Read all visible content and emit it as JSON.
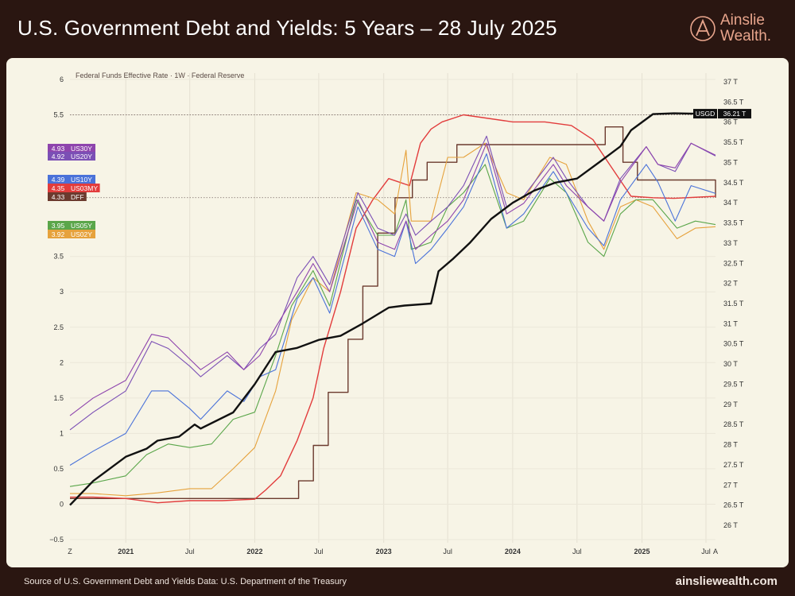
{
  "header": {
    "title": "U.S. Government Debt and Yields: 5 Years – 28 July 2025",
    "logo_line1": "Ainslie",
    "logo_line2": "Wealth."
  },
  "footer": {
    "source": "Source of U.S. Government Debt and Yields Data: U.S. Department of the Treasury",
    "site": "ainsliewealth.com"
  },
  "colors": {
    "debt": "#111111",
    "US30Y": "#8e44ad",
    "US20Y": "#7b4fb5",
    "US10Y": "#4a72d9",
    "US03MY": "#e23c3c",
    "DFF": "#6b3a2e",
    "US05Y": "#5aa64a",
    "US02Y": "#e6a23c"
  },
  "chart_data": {
    "type": "line",
    "subtitle": "Federal Funds Effective Rate · 1W · Federal Reserve",
    "x_range": [
      "2020-07-27",
      "2025-07-28"
    ],
    "x_ticks": [
      {
        "date": "2020-07-27",
        "label": "Z"
      },
      {
        "date": "2021-01-01",
        "label": "2021"
      },
      {
        "date": "2021-07-01",
        "label": "Jul"
      },
      {
        "date": "2022-01-01",
        "label": "2022"
      },
      {
        "date": "2022-07-01",
        "label": "Jul"
      },
      {
        "date": "2023-01-01",
        "label": "2023"
      },
      {
        "date": "2023-07-01",
        "label": "Jul"
      },
      {
        "date": "2024-01-01",
        "label": "2024"
      },
      {
        "date": "2024-07-01",
        "label": "Jul"
      },
      {
        "date": "2025-01-01",
        "label": "2025"
      },
      {
        "date": "2025-07-01",
        "label": "Jul"
      },
      {
        "date": "2025-07-28",
        "label": "A"
      }
    ],
    "left_axis": {
      "ylim": [
        -0.5,
        6
      ],
      "ticks": [
        "6",
        "5.5",
        "3.5",
        "3",
        "2.5",
        "2",
        "1.5",
        "1",
        "0.5",
        "0",
        "−0.5"
      ]
    },
    "right_axis": {
      "ylim": [
        26,
        37
      ],
      "ticks": [
        "37 T",
        "36.5 T",
        "36 T",
        "35.5 T",
        "35 T",
        "34.5 T",
        "34 T",
        "33.5 T",
        "33 T",
        "32.5 T",
        "32 T",
        "31.5 T",
        "31 T",
        "30.5 T",
        "30 T",
        "29.5 T",
        "29 T",
        "28.5 T",
        "28 T",
        "27.5 T",
        "27 T",
        "26.5 T",
        "26 T"
      ]
    },
    "reference_lines": [
      {
        "axis": "left",
        "value": 5.5
      },
      {
        "axis": "left",
        "value": 4.33
      }
    ],
    "labels": [
      {
        "value": "4.93",
        "name": "US30Y",
        "color": "#8e44ad"
      },
      {
        "value": "4.92",
        "name": "US20Y",
        "color": "#7b4fb5"
      },
      {
        "value": "4.39",
        "name": "US10Y",
        "color": "#4a72d9"
      },
      {
        "value": "4.35",
        "name": "US03MY",
        "color": "#e23c3c"
      },
      {
        "value": "4.33",
        "name": "DFF",
        "color": "#6b3a2e"
      },
      {
        "value": "3.95",
        "name": "US05Y",
        "color": "#5aa64a"
      },
      {
        "value": "3.92",
        "name": "US02Y",
        "color": "#e6a23c"
      }
    ],
    "debt_label": {
      "name": "USGD",
      "value": "36.21 T"
    },
    "series": [
      {
        "name": "USGD",
        "axis": "right",
        "color": "#111111",
        "width": 2.4,
        "x": [
          "2020-07-27",
          "2020-10-01",
          "2021-01-01",
          "2021-03-01",
          "2021-04-01",
          "2021-06-01",
          "2021-07-15",
          "2021-08-01",
          "2021-11-01",
          "2022-01-01",
          "2022-03-01",
          "2022-05-01",
          "2022-07-01",
          "2022-09-01",
          "2022-11-01",
          "2023-01-15",
          "2023-03-01",
          "2023-05-15",
          "2023-06-05",
          "2023-07-15",
          "2023-09-01",
          "2023-11-01",
          "2024-01-01",
          "2024-03-01",
          "2024-05-01",
          "2024-07-01",
          "2024-09-01",
          "2024-11-01",
          "2024-12-01",
          "2025-02-01",
          "2025-04-01",
          "2025-06-01",
          "2025-07-28"
        ],
        "y": [
          26.5,
          27.1,
          27.7,
          27.9,
          28.1,
          28.2,
          28.5,
          28.4,
          28.8,
          29.5,
          30.3,
          30.4,
          30.6,
          30.7,
          31.0,
          31.4,
          31.45,
          31.5,
          32.3,
          32.6,
          33.0,
          33.6,
          34.0,
          34.3,
          34.5,
          34.6,
          35.0,
          35.4,
          35.8,
          36.2,
          36.22,
          36.21,
          36.21
        ]
      },
      {
        "name": "DFF",
        "axis": "left",
        "color": "#6b3a2e",
        "width": 1.4,
        "x": [
          "2020-07-27",
          "2022-03-17",
          "2022-05-05",
          "2022-06-16",
          "2022-07-28",
          "2022-09-22",
          "2022-11-03",
          "2022-12-15",
          "2023-02-02",
          "2023-03-23",
          "2023-05-04",
          "2023-07-27",
          "2024-09-19",
          "2024-11-08",
          "2024-12-19",
          "2025-07-28"
        ],
        "y": [
          0.08,
          0.08,
          0.33,
          0.83,
          1.58,
          2.33,
          3.08,
          3.83,
          4.33,
          4.58,
          4.83,
          5.08,
          5.33,
          4.83,
          4.58,
          4.33
        ],
        "step": true
      },
      {
        "name": "US03MY",
        "axis": "left",
        "color": "#e23c3c",
        "width": 1.4,
        "x": [
          "2020-07-27",
          "2020-10-01",
          "2021-01-01",
          "2021-04-01",
          "2021-07-01",
          "2021-10-01",
          "2022-01-01",
          "2022-02-01",
          "2022-03-15",
          "2022-05-01",
          "2022-06-15",
          "2022-07-15",
          "2022-09-01",
          "2022-10-15",
          "2022-12-01",
          "2023-01-15",
          "2023-03-15",
          "2023-04-15",
          "2023-05-15",
          "2023-06-15",
          "2023-08-15",
          "2024-01-01",
          "2024-04-01",
          "2024-06-15",
          "2024-08-15",
          "2024-10-01",
          "2024-12-01",
          "2025-02-01",
          "2025-04-01",
          "2025-07-28"
        ],
        "y": [
          0.1,
          0.1,
          0.08,
          0.02,
          0.05,
          0.05,
          0.07,
          0.2,
          0.4,
          0.9,
          1.5,
          2.2,
          3.0,
          3.9,
          4.3,
          4.6,
          4.5,
          5.1,
          5.3,
          5.4,
          5.5,
          5.4,
          5.4,
          5.35,
          5.15,
          4.8,
          4.35,
          4.33,
          4.32,
          4.35
        ]
      },
      {
        "name": "US02Y",
        "axis": "left",
        "color": "#e6a23c",
        "width": 1.1,
        "x": [
          "2020-07-27",
          "2020-10-01",
          "2021-01-01",
          "2021-04-01",
          "2021-07-01",
          "2021-09-01",
          "2021-11-01",
          "2022-01-01",
          "2022-03-01",
          "2022-04-15",
          "2022-06-15",
          "2022-08-01",
          "2022-10-15",
          "2022-12-15",
          "2023-02-01",
          "2023-03-05",
          "2023-03-20",
          "2023-05-15",
          "2023-07-01",
          "2023-08-15",
          "2023-10-15",
          "2023-12-15",
          "2024-02-01",
          "2024-04-15",
          "2024-06-01",
          "2024-08-01",
          "2024-09-15",
          "2024-11-01",
          "2024-12-15",
          "2025-02-01",
          "2025-04-10",
          "2025-06-01",
          "2025-07-28"
        ],
        "y": [
          0.15,
          0.15,
          0.12,
          0.16,
          0.22,
          0.22,
          0.5,
          0.8,
          1.6,
          2.6,
          3.2,
          3.0,
          4.4,
          4.3,
          4.1,
          5.0,
          4.0,
          4.0,
          4.9,
          4.9,
          5.1,
          4.4,
          4.3,
          4.9,
          4.8,
          4.0,
          3.6,
          4.2,
          4.3,
          4.2,
          3.75,
          3.9,
          3.92
        ]
      },
      {
        "name": "US05Y",
        "axis": "left",
        "color": "#5aa64a",
        "width": 1.1,
        "x": [
          "2020-07-27",
          "2020-10-01",
          "2021-01-01",
          "2021-03-01",
          "2021-05-01",
          "2021-07-01",
          "2021-09-01",
          "2021-11-01",
          "2022-01-01",
          "2022-03-01",
          "2022-04-15",
          "2022-06-15",
          "2022-08-01",
          "2022-10-15",
          "2022-12-15",
          "2023-02-01",
          "2023-03-05",
          "2023-03-20",
          "2023-05-15",
          "2023-07-01",
          "2023-08-15",
          "2023-10-15",
          "2023-12-15",
          "2024-02-01",
          "2024-04-15",
          "2024-06-01",
          "2024-08-01",
          "2024-09-15",
          "2024-11-01",
          "2024-12-15",
          "2025-02-01",
          "2025-04-10",
          "2025-06-01",
          "2025-07-28"
        ],
        "y": [
          0.25,
          0.3,
          0.4,
          0.7,
          0.85,
          0.8,
          0.85,
          1.2,
          1.3,
          2.1,
          2.8,
          3.3,
          2.8,
          4.3,
          3.8,
          3.8,
          4.3,
          3.6,
          3.7,
          4.2,
          4.4,
          4.8,
          3.9,
          4.0,
          4.6,
          4.4,
          3.7,
          3.5,
          4.1,
          4.3,
          4.3,
          3.9,
          4.0,
          3.95
        ]
      },
      {
        "name": "US10Y",
        "axis": "left",
        "color": "#4a72d9",
        "width": 1.1,
        "x": [
          "2020-07-27",
          "2020-10-01",
          "2021-01-01",
          "2021-03-15",
          "2021-05-01",
          "2021-07-01",
          "2021-08-01",
          "2021-10-15",
          "2021-12-01",
          "2022-01-15",
          "2022-03-01",
          "2022-05-01",
          "2022-06-15",
          "2022-08-01",
          "2022-10-20",
          "2022-12-15",
          "2023-02-01",
          "2023-03-05",
          "2023-04-01",
          "2023-05-15",
          "2023-07-01",
          "2023-08-15",
          "2023-10-19",
          "2023-12-15",
          "2024-02-01",
          "2024-04-25",
          "2024-06-01",
          "2024-08-01",
          "2024-09-15",
          "2024-11-01",
          "2025-01-13",
          "2025-02-15",
          "2025-04-05",
          "2025-05-20",
          "2025-07-28"
        ],
        "y": [
          0.55,
          0.75,
          1.0,
          1.6,
          1.6,
          1.35,
          1.2,
          1.6,
          1.45,
          1.8,
          1.9,
          2.9,
          3.2,
          2.7,
          4.2,
          3.6,
          3.5,
          4.0,
          3.4,
          3.6,
          3.9,
          4.2,
          4.95,
          3.9,
          4.1,
          4.7,
          4.4,
          3.9,
          3.65,
          4.3,
          4.8,
          4.55,
          4.0,
          4.5,
          4.39
        ]
      },
      {
        "name": "US20Y",
        "axis": "left",
        "color": "#7b4fb5",
        "width": 1.1,
        "x": [
          "2020-07-27",
          "2020-10-01",
          "2021-01-01",
          "2021-03-15",
          "2021-05-01",
          "2021-07-01",
          "2021-08-01",
          "2021-10-15",
          "2021-12-01",
          "2022-01-15",
          "2022-03-01",
          "2022-05-01",
          "2022-06-15",
          "2022-08-01",
          "2022-10-20",
          "2022-12-15",
          "2023-02-01",
          "2023-03-05",
          "2023-04-01",
          "2023-05-15",
          "2023-07-01",
          "2023-08-15",
          "2023-10-19",
          "2023-12-15",
          "2024-02-01",
          "2024-04-25",
          "2024-06-01",
          "2024-08-01",
          "2024-09-15",
          "2024-11-01",
          "2025-01-13",
          "2025-02-15",
          "2025-04-05",
          "2025-05-20",
          "2025-07-28"
        ],
        "y": [
          1.05,
          1.3,
          1.6,
          2.3,
          2.2,
          1.95,
          1.8,
          2.1,
          1.9,
          2.2,
          2.4,
          3.2,
          3.5,
          3.1,
          4.4,
          3.9,
          3.8,
          4.1,
          3.8,
          4.0,
          4.2,
          4.5,
          5.2,
          4.2,
          4.35,
          4.9,
          4.6,
          4.2,
          4.0,
          4.6,
          5.05,
          4.8,
          4.7,
          5.1,
          4.92
        ]
      },
      {
        "name": "US30Y",
        "axis": "left",
        "color": "#8e44ad",
        "width": 1.1,
        "x": [
          "2020-07-27",
          "2020-10-01",
          "2021-01-01",
          "2021-03-15",
          "2021-05-01",
          "2021-07-01",
          "2021-08-01",
          "2021-10-15",
          "2021-12-01",
          "2022-01-15",
          "2022-03-01",
          "2022-05-01",
          "2022-06-15",
          "2022-08-01",
          "2022-10-20",
          "2022-12-15",
          "2023-02-01",
          "2023-03-05",
          "2023-04-01",
          "2023-05-15",
          "2023-07-01",
          "2023-08-15",
          "2023-10-19",
          "2023-12-15",
          "2024-02-01",
          "2024-04-25",
          "2024-06-01",
          "2024-08-01",
          "2024-09-15",
          "2024-11-01",
          "2025-01-13",
          "2025-02-15",
          "2025-04-05",
          "2025-05-20",
          "2025-07-28"
        ],
        "y": [
          1.25,
          1.5,
          1.75,
          2.4,
          2.35,
          2.05,
          1.9,
          2.15,
          1.9,
          2.1,
          2.5,
          3.0,
          3.4,
          3.0,
          4.3,
          3.7,
          3.6,
          4.0,
          3.6,
          3.8,
          4.0,
          4.3,
          5.1,
          4.1,
          4.25,
          4.8,
          4.5,
          4.2,
          4.0,
          4.55,
          5.05,
          4.8,
          4.75,
          5.1,
          4.93
        ]
      }
    ]
  }
}
